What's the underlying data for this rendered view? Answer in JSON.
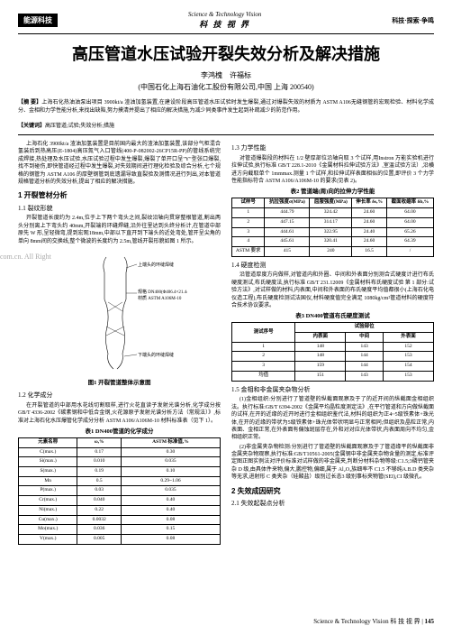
{
  "header": {
    "left_tag": "能源科技",
    "center_en": "Science & Technology Vision",
    "center_cn": "科 技 视 界",
    "right": "科技·探索·争鸣"
  },
  "title": "高压管道水压试验开裂失效分析及解决措施",
  "authors": "李鸿槐　许福标",
  "affiliation": "(中国石化上海石油化工股份有限公司,中国 上海 200540)",
  "abstract_label": "【摘 要】",
  "abstract": "上海石化热油油泵出项目 3900kt/a 渣油加氢装置,在建设阶段高压管道水压试验时发生爆裂,通过对爆裂失效的材质为 ASTM A106无缝钢管的宏观检验、材料化学成分、金相和力学性能分析,来找出缺陷,努力摸清并提出了相应的解决措施,为减少同类事件发生起到补疏减少的防范作用。",
  "keywords_label": "【关键词】",
  "keywords": "高压管道;试验;失效分析;措施",
  "watermark": "com.cn. All Right",
  "left_col": {
    "intro": "上海石化 3900kt/a 渣油加氢装置是目前国内最大的渣油加氢装置,该部分气柜混合氢装后到热高压(E-1804)高压氮气入口管线(400-P-082002-26CP15R-PP)的管线系统完成焊接,热处理及水压试验,水压试验过程中发生爆裂,爆裂了单开口呈\"Y\"型张口爆裂,找不到碰伤,即快管道经过程中发生爆裂,对失效期间进行理化检验及综合分析,七个规格的钢管为 ASTM A106 的厚壁钢管到底遗漏导致直裂验及测情况进行列出,对本管道规格管道分析的失效分析,提出了相应的解决措施。",
    "s1_title": "1 开裂管材分析",
    "s11_title": "1.1 裂纹形貌",
    "s11_text": "开裂管道长度约为 2.4m,位于上下两个弯头之间,裂纹沿轴向贯穿整根管道,割出两头分别离上下弯头约 40mm,开裂端的环缝焊缝,沿外往里达到头终分析计,在管道中部原先 W 形,呈轻微弯,提到宏观18mm,中部以下直开到下端头的近处弯处,管开呈尖角的单向 8mm间的交换线,整个微波的长度约为 2.5m,管线开裂形貌如图 1 所示。",
    "fig1_cap": "图1 开裂管道整体示意图",
    "fig1_labels": {
      "top": "上端头的环缝焊缝",
      "spec": "规格 DN400(Φ406.4×21.44)",
      "mat": "材质 ASTM A106M-10",
      "bottom": "下端头的环缝焊缝"
    },
    "s12_title": "1.2 化学成分",
    "s12_text": "在开裂管道的中部用水花线切割取样,进行火花直读子发射光谱分析,化学成分按 GB/T 4336-2002《碳素钢和中低合金钢,火花源原子发射光谱分析方法（常规法）》,标准对上海石化水压爆管化学成分分析 ASTM A106/A106M-10 材料标准表（见下 1）。",
    "tbl1_cap": "表1 DN400管道的化学成分",
    "tbl1": {
      "cols": [
        "元素名称",
        "ω,%",
        "ASTM 标准值,%"
      ],
      "rows": [
        [
          "C(max.)",
          "0.17",
          "0.30"
        ],
        [
          "Si(max.)",
          "0.010",
          "0.035"
        ],
        [
          "S(max.)",
          "0.19",
          "0.10"
        ],
        [
          "Mn",
          "0.5",
          "0.29~1.06"
        ],
        [
          "P(max.)",
          "0.03",
          "0.035"
        ],
        [
          "Cr(max.)",
          "0.040",
          "0.40"
        ],
        [
          "Ni(max.)",
          "0.22",
          "0.40"
        ],
        [
          "Cu(max.)",
          "0.0032",
          "0.08"
        ],
        [
          "Mo(max.)",
          "0.036",
          "0.15"
        ],
        [
          "V(max.)",
          "0.005",
          "0.08"
        ]
      ]
    }
  },
  "right_col": {
    "s13_title": "1.3 力学性能",
    "s13_text1": "对管道爆裂段的材料在 1/2 壁厚部位沿轴向取 3 个试样,用Instron 万能实验机进行拉伸试验,执行标准 GB/T 228.1-2010《金属材料拉伸试验方法》,室温试验方法）,沿横进方向截取单个 1mmmax.测量 1 个试样,和拉伸试样表面相似的位置,即评价 3 个力学性能指标符合 ASTM A106/A106M-10 的要求(见表 2)。",
    "tbl2_cap": "表2 管道端(周)向的拉伸力学性能",
    "tbl2": {
      "cols": [
        "试样号",
        "抗拉强度σ(MPa)",
        "屈服强度(MPa)",
        "伸长率 δs,%",
        "截面收缩率 δb,%"
      ],
      "rows": [
        [
          "1",
          "444.79",
          "324.42",
          "24.60",
          "64.00"
        ],
        [
          "2",
          "447.15",
          "314.17",
          "24.60",
          "64.00"
        ],
        [
          "3",
          "444.61",
          "322.95",
          "24.40",
          "65.26"
        ],
        [
          "4",
          "445.61",
          "320.41",
          "24.60",
          "64.39"
        ],
        [
          "ASTM 要求",
          "415",
          "240",
          "16.5",
          "/"
        ]
      ]
    },
    "s14_title": "1.4 硬度检测",
    "s14_text": "沿管道厚度方向做样,对管道内和外圈、中间和外表面分别测合式硬度计进行布氏硬度测试,布氏硬度法,执行标准 GB/T 231.12009《金属材料布氏硬度试验 第 1 部分:试验方法》,对试样做的材料,内表面,中间和外表面的布氏硬度平均值都很小(上海石化电仪造工程),布氏硬度检测试法国仪,材料硬度值完全满足 1080kg/cm²管道材料的硬度符合技术协议要求。",
    "tbl3_cap": "表3 DN400管道布氏硬度测试",
    "tbl3": {
      "cols": [
        "测试序号",
        "内表面",
        "中间",
        "外表面"
      ],
      "rows": [
        [
          "1",
          "148",
          "143",
          "152"
        ],
        [
          "2",
          "148",
          "144",
          "153"
        ],
        [
          "3",
          "159",
          "144",
          "154"
        ],
        [
          "均值",
          "151",
          "143",
          "153"
        ]
      ]
    },
    "s15_title": "1.5 金相和非金属夹杂物分析",
    "s15_text": "(1)金相组织:分别进行了管道壁的纵截面观察及于了的近开间的纵截面金相组织法。执行标准:GB/T 6394-2002《金属平均晶粒度测定法》,在平行管道和方向做纵截面的试样,在开的近缘的近开时进行金相组织鉴代法,材料的组织为正4~5级铁素体+珠光体,在开的近缘的带状为5级铁素体+珠光体带状明显与正常相同;但组织及晶粒正常,内表面、金相正常,在外表面有偏蚀斑层存在,外和对对应光体带状,内表面周向不均匀,金相组织正常。",
    "s15_text2": "(2)非金属夹杂物检测:分别进行了管道壁的纵截面观察及于了管道缘平的纵截面非金属夹杂物观察,执行标准:GB/T10561-2005(金属钢中非金属夹杂物含量的测定,标准评定图正图实例法对评价标准对试样做的非金属夹,判断分材料杂物等级:C1.5;3磷钙管夹杂 D 级,由具体件来物,偏大,鹏控物,偏细,属于 Al₂O₃族细率不 C1.5 不够纯A.B.D 类夹杂等无求,进射形 C 类夹杂（硅酸盐）级别过长态3 级别事标夹物管(SEI),CI 级微孔。",
    "s2_title": "2 失效成因研究",
    "s21_title": "2.1 失效起裂点分析"
  },
  "footer": {
    "text": "Science & Technology Vision 科 技 视 界",
    "page": "145"
  }
}
